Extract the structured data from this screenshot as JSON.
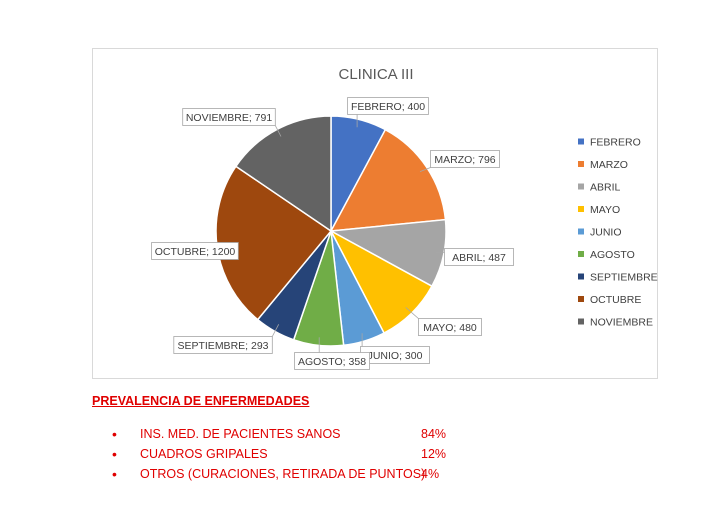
{
  "chart_data": {
    "type": "pie",
    "title": "CLINICA III",
    "categories": [
      "FEBRERO",
      "MARZO",
      "ABRIL",
      "MAYO",
      "JUNIO",
      "AGOSTO",
      "SEPTIEMBRE",
      "OCTUBRE",
      "NOVIEMBRE"
    ],
    "values": [
      400,
      796,
      487,
      480,
      300,
      358,
      293,
      1200,
      791
    ],
    "data_labels": [
      "FEBRERO; 400",
      "MARZO; 796",
      "ABRIL; 487",
      "MAYO; 480",
      "JUNIO; 300",
      "AGOSTO; 358",
      "SEPTIEMBRE; 293",
      "OCTUBRE; 1200",
      "NOVIEMBRE; 791"
    ],
    "colors": [
      "#4472c4",
      "#ed7d31",
      "#a5a5a5",
      "#ffc000",
      "#5b9bd5",
      "#70ad47",
      "#264478",
      "#9e480e",
      "#636363"
    ],
    "legend_position": "right"
  },
  "notes": {
    "heading": "PREVALENCIA DE ENFERMEDADES",
    "bullet": "•",
    "color": "#e00000",
    "items": [
      {
        "label": "INS. MED. DE PACIENTES SANOS",
        "value": "84%"
      },
      {
        "label": "CUADROS GRIPALES",
        "value": "12%"
      },
      {
        "label": "OTROS (CURACIONES, RETIRADA DE PUNTOS)",
        "value": "4%"
      }
    ]
  }
}
